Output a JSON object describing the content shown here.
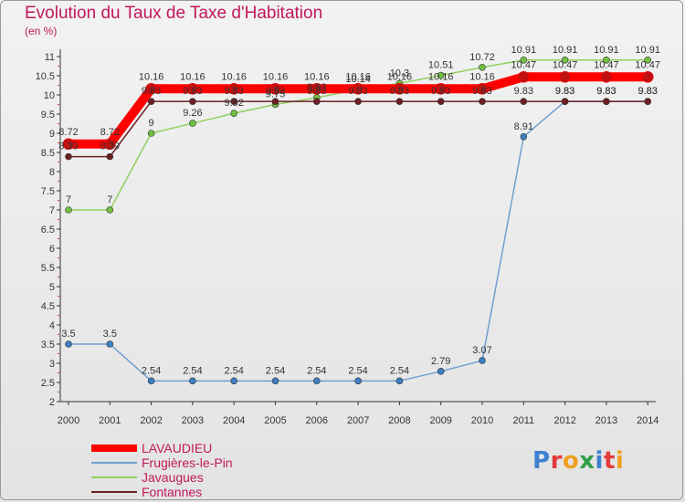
{
  "chart_data": {
    "type": "line",
    "title": "Evolution du Taux de Taxe d'Habitation",
    "subtitle": "(en %)",
    "xlabel": "",
    "ylabel": "",
    "categories": [
      "2000",
      "2001",
      "2002",
      "2003",
      "2004",
      "2005",
      "2006",
      "2007",
      "2008",
      "2009",
      "2010",
      "2011",
      "2012",
      "2013",
      "2014"
    ],
    "ylim": [
      2,
      11
    ],
    "yticks": [
      "2",
      "2.5",
      "3",
      "3.5",
      "4",
      "4.5",
      "5",
      "5.5",
      "6",
      "6.5",
      "7",
      "7.5",
      "8",
      "8.5",
      "9",
      "9.5",
      "10",
      "10.5",
      "11"
    ],
    "grid": false,
    "legend_position": "bottom-left",
    "series": [
      {
        "name": "LAVAUDIEU",
        "color": "#ff0000",
        "values": [
          8.72,
          8.72,
          10.16,
          10.16,
          10.16,
          10.16,
          10.16,
          10.16,
          10.16,
          10.16,
          10.16,
          10.47,
          10.47,
          10.47,
          10.47
        ],
        "labels": [
          "8.72",
          "8.72",
          "10.16",
          "10.16",
          "10.16",
          "10.16",
          "10.16",
          "10.16",
          "10.16",
          "10.16",
          "10.16",
          "10.47",
          "10.47",
          "10.47",
          "10.47"
        ]
      },
      {
        "name": "Frugières-le-Pin",
        "color": "#6fa0d0",
        "values": [
          3.5,
          3.5,
          2.54,
          2.54,
          2.54,
          2.54,
          2.54,
          2.54,
          2.54,
          2.79,
          3.07,
          8.91,
          9.83,
          9.83,
          9.83
        ],
        "labels": [
          "3.5",
          "3.5",
          "2.54",
          "2.54",
          "2.54",
          "2.54",
          "2.54",
          "2.54",
          "2.54",
          "2.79",
          "3.07",
          "8.91",
          "9.83",
          "9.83",
          "9.83"
        ]
      },
      {
        "name": "Javaugues",
        "color": "#90d060",
        "values": [
          7,
          7,
          9,
          9.26,
          9.52,
          9.75,
          9.93,
          10.14,
          10.3,
          10.51,
          10.72,
          10.91,
          10.91,
          10.91,
          10.91
        ],
        "labels": [
          "7",
          "7",
          "9",
          "9.26",
          "9.52",
          "9.75",
          "9.93",
          "10.14",
          "10.3",
          "10.51",
          "10.72",
          "10.91",
          "10.91",
          "10.91",
          "10.91"
        ]
      },
      {
        "name": "Fontannes",
        "color": "#6b1f23",
        "values": [
          8.39,
          8.39,
          9.83,
          9.83,
          9.83,
          9.83,
          9.83,
          9.83,
          9.83,
          9.83,
          9.83,
          9.83,
          9.83,
          9.83,
          9.83
        ],
        "labels": [
          "8.39",
          "8.39",
          "9.83",
          "9.83",
          "9.83",
          "9.83",
          "9.83",
          "9.83",
          "9.83",
          "9.83",
          "9.83",
          "9.83",
          "9.83",
          "9.83",
          "9.83"
        ]
      }
    ]
  },
  "legend": {
    "items": [
      "LAVAUDIEU",
      "Frugières-le-Pin",
      "Javaugues",
      "Fontannes"
    ]
  },
  "logo": {
    "text": "Proxiti",
    "letters": [
      "P",
      "r",
      "o",
      "x",
      "i",
      "t",
      "i"
    ],
    "colors": [
      "#3d7fd0",
      "#e23a3a",
      "#f0a020",
      "#2f9e44",
      "#3d7fd0",
      "#e23a3a",
      "#f0a020"
    ]
  }
}
